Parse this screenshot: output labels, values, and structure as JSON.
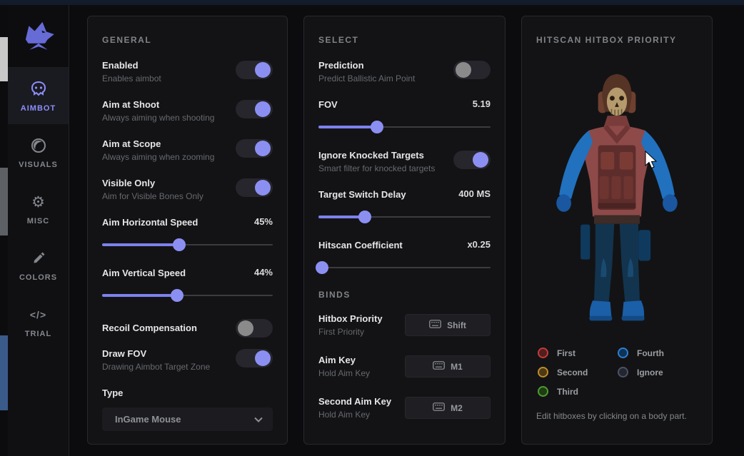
{
  "colors": {
    "accent": "#8c8ff2",
    "panel_border": "#29292d"
  },
  "sidebar": {
    "items": [
      {
        "label": "AIMBOT",
        "icon": "bot-skull-icon",
        "active": true
      },
      {
        "label": "VISUALS",
        "icon": "contrast-icon",
        "active": false
      },
      {
        "label": "MISC",
        "icon": "gear-icon",
        "active": false
      },
      {
        "label": "COLORS",
        "icon": "eyedropper-icon",
        "active": false
      },
      {
        "label": "TRIAL",
        "icon": "code-icon",
        "active": false
      }
    ],
    "gear_glyph": "⚙",
    "code_glyph": "</>"
  },
  "general": {
    "title": "GENERAL",
    "enabled": {
      "label": "Enabled",
      "desc": "Enables aimbot",
      "on": true
    },
    "aim_at_shoot": {
      "label": "Aim at Shoot",
      "desc": "Always aiming when shooting",
      "on": true
    },
    "aim_at_scope": {
      "label": "Aim at Scope",
      "desc": "Always aiming when zooming",
      "on": true
    },
    "visible_only": {
      "label": "Visible Only",
      "desc": "Aim for Visible Bones Only",
      "on": true
    },
    "aim_horizontal": {
      "label": "Aim Horizontal Speed",
      "value": "45%",
      "percent": 45
    },
    "aim_vertical": {
      "label": "Aim Vertical Speed",
      "value": "44%",
      "percent": 44
    },
    "recoil": {
      "label": "Recoil Compensation",
      "on": false
    },
    "draw_fov": {
      "label": "Draw FOV",
      "desc": "Drawing Aimbot Target Zone",
      "on": true
    },
    "type": {
      "label": "Type",
      "value": "InGame Mouse"
    }
  },
  "select": {
    "title": "SELECT",
    "prediction": {
      "label": "Prediction",
      "desc": "Predict Ballistic Aim Point",
      "on": false
    },
    "fov": {
      "label": "FOV",
      "value": "5.19",
      "percent": 34
    },
    "ignore_knocked": {
      "label": "Ignore Knocked Targets",
      "desc": "Smart filter for knocked targets",
      "on": true
    },
    "switch_delay": {
      "label": "Target Switch Delay",
      "value": "400 MS",
      "percent": 27
    },
    "hitscan_coeff": {
      "label": "Hitscan Coefficient",
      "value": "x0.25",
      "percent": 2
    },
    "binds_title": "BINDS",
    "hitbox_priority": {
      "label": "Hitbox Priority",
      "desc": "First Priority",
      "key": "Shift"
    },
    "aim_key": {
      "label": "Aim Key",
      "desc": "Hold Aim Key",
      "key": "M1"
    },
    "second_aim_key": {
      "label": "Second Aim Key",
      "desc": "Hold Aim Key",
      "key": "M2"
    }
  },
  "hitbox": {
    "title": "HITSCAN HITBOX PRIORITY",
    "legend": [
      {
        "label": "First",
        "color": "#c23b3b",
        "fill": "#511f1e"
      },
      {
        "label": "Second",
        "color": "#c08a2d",
        "fill": "#4b3a14"
      },
      {
        "label": "Third",
        "color": "#4e9b33",
        "fill": "#1e3d13"
      },
      {
        "label": "Fourth",
        "color": "#2d7fd1",
        "fill": "#0f3354"
      },
      {
        "label": "Ignore",
        "color": "#4a5268",
        "fill": "#23262e"
      }
    ],
    "footer": "Edit hitboxes by clicking on a body part."
  }
}
